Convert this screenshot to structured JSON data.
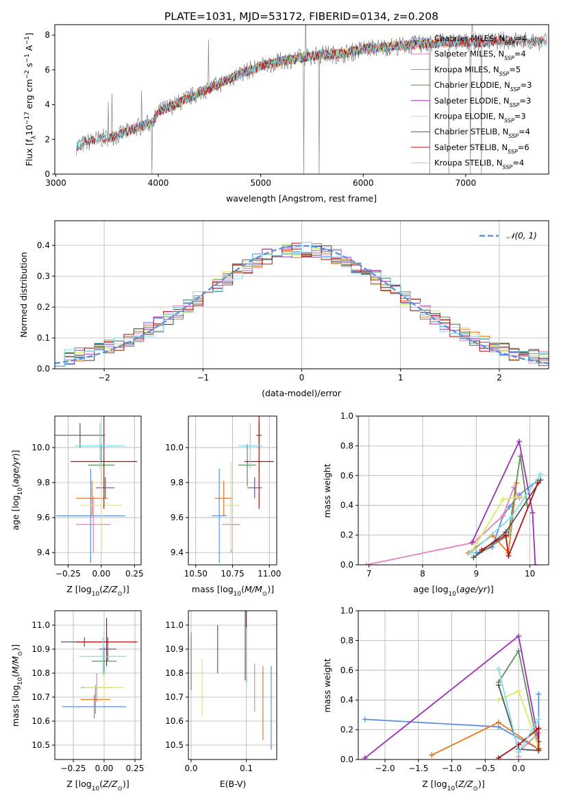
{
  "figure": {
    "title": "PLATE=1031, MJD=53172, FIBERID=0134, z=0.208"
  },
  "colors": {
    "Chabrier MILES": "#5b8fe0",
    "Salpeter MILES": "#e67fb9",
    "Kroupa MILES": "#e8761e",
    "Chabrier ELODIE": "#5e8c5e",
    "Salpeter ELODIE": "#9b2fb3",
    "Kroupa ELODIE": "#d3ec63",
    "Chabrier STELIB": "#555555",
    "Salpeter STELIB": "#b30d0d",
    "Kroupa STELIB": "#7fdde8",
    "data": "#808080",
    "normal": "#5b8fe0"
  },
  "chart_data": [
    {
      "type": "line",
      "id": "spectrum",
      "xlabel": "wavelength [Angstrom, rest frame]",
      "ylabel": "Flux [f_λ10^-17 erg cm^-2 s^-1 A^-1]",
      "xlim": [
        2990,
        7810
      ],
      "ylim": [
        0,
        8.6
      ],
      "xticks": [
        3000,
        4000,
        5000,
        6000,
        7000
      ],
      "yticks": [
        0,
        2,
        4,
        6,
        8
      ],
      "grid": false,
      "legend_position": "top-right",
      "legend": [
        {
          "label": "Chabrier MILES",
          "nssp": "4"
        },
        {
          "label": "Salpeter MILES",
          "nssp": "4"
        },
        {
          "label": "Kroupa MILES",
          "nssp": "5"
        },
        {
          "label": "Chabrier ELODIE",
          "nssp": "3"
        },
        {
          "label": "Salpeter ELODIE",
          "nssp": "3"
        },
        {
          "label": "Kroupa ELODIE",
          "nssp": "3"
        },
        {
          "label": "Chabrier STELIB",
          "nssp": "4"
        },
        {
          "label": "Salpeter STELIB",
          "nssp": "6"
        },
        {
          "label": "Kroupa STELIB",
          "nssp": "4"
        }
      ],
      "continuum_x": [
        3200,
        3400,
        3600,
        3800,
        3950,
        4000,
        4200,
        4400,
        4600,
        4800,
        5000,
        5200,
        5400,
        5600,
        5800,
        6000,
        6200,
        6400,
        6600,
        6800,
        7000,
        7200,
        7400,
        7790
      ],
      "continuum_y": [
        1.6,
        2.0,
        2.2,
        2.7,
        3.0,
        3.6,
        4.1,
        4.7,
        5.2,
        5.8,
        6.2,
        6.5,
        6.7,
        6.9,
        6.9,
        7.2,
        7.3,
        7.4,
        7.5,
        7.6,
        7.6,
        7.6,
        7.7,
        7.6
      ]
    },
    {
      "type": "bar",
      "id": "residuals",
      "xlabel": "(data-model)/error",
      "ylabel": "Normed distribution",
      "xlim": [
        -2.5,
        2.5
      ],
      "ylim": [
        0,
        0.48
      ],
      "xticks": [
        -2,
        -1,
        0,
        1,
        2
      ],
      "yticks": [
        0.0,
        0.1,
        0.2,
        0.3,
        0.4
      ],
      "grid": true,
      "bin_width": 0.1,
      "legend": "N(0,1)",
      "legend_position": "top-right"
    },
    {
      "type": "scatter",
      "id": "age-vs-Z",
      "xlabel": "Z [log10(Z/Z⊙)]",
      "ylabel": "age [log10(age/yr)]",
      "xlim": [
        -0.35,
        0.3
      ],
      "ylim": [
        9.33,
        10.18
      ],
      "xticks": [
        -0.25,
        0.0,
        0.25
      ],
      "yticks": [
        9.4,
        9.6,
        9.8,
        10.0
      ],
      "grid": true
    },
    {
      "type": "scatter",
      "id": "age-vs-mass",
      "xlabel": "mass [log10(M/M⊙)]",
      "ylabel": "",
      "xlim": [
        10.45,
        11.05
      ],
      "ylim": [
        9.33,
        10.18
      ],
      "xticks": [
        10.5,
        10.75,
        11.0
      ],
      "yticks": [
        9.4,
        9.6,
        9.8,
        10.0
      ],
      "grid": true
    },
    {
      "type": "line",
      "id": "mass-weight-vs-age",
      "xlabel": "age [log10(age/yr)]",
      "ylabel": "mass weight",
      "xlim": [
        6.8,
        10.35
      ],
      "ylim": [
        0,
        1.0
      ],
      "xticks": [
        7,
        8,
        9,
        10
      ],
      "yticks": [
        0.0,
        0.2,
        0.4,
        0.6,
        0.8,
        1.0
      ],
      "grid": true
    },
    {
      "type": "scatter",
      "id": "mass-vs-Z",
      "xlabel": "Z [log10(Z/Z⊙)]",
      "ylabel": "mass [log10(M/M⊙)]",
      "xlim": [
        -0.4,
        0.3
      ],
      "ylim": [
        10.44,
        11.06
      ],
      "xticks": [
        -0.25,
        0.0,
        0.25
      ],
      "yticks": [
        10.5,
        10.6,
        10.7,
        10.8,
        10.9,
        11.0
      ],
      "grid": true
    },
    {
      "type": "scatter",
      "id": "mass-vs-EBV",
      "xlabel": "E(B-V)",
      "ylabel": "",
      "xlim": [
        -0.005,
        0.155
      ],
      "ylim": [
        10.44,
        11.06
      ],
      "xticks": [
        0.0,
        0.1
      ],
      "yticks": [
        10.5,
        10.6,
        10.7,
        10.8,
        10.9,
        11.0
      ],
      "grid": true
    },
    {
      "type": "line",
      "id": "mass-weight-vs-Z",
      "xlabel": "Z [log10(Z/Z⊙)]",
      "ylabel": "mass weight",
      "xlim": [
        -2.4,
        0.45
      ],
      "ylim": [
        0,
        1.0
      ],
      "xticks": [
        -2.0,
        -1.5,
        -1.0,
        -0.5,
        0.0
      ],
      "yticks": [
        0.0,
        0.2,
        0.4,
        0.6,
        0.8,
        1.0
      ],
      "grid": true
    }
  ],
  "models": [
    {
      "name": "Chabrier MILES",
      "age": [
        9.61,
        0.27
      ],
      "Z": [
        -0.08,
        0.26
      ],
      "mass": [
        10.66,
        0.05
      ],
      "mass_err": [
        0.2,
        0.16
      ],
      "ebv": 0.145,
      "ebv_err": [
        0.18,
        0.17
      ],
      "mw_age": [
        [
          9.0,
          0.08
        ],
        [
          9.3,
          0.12
        ],
        [
          9.5,
          0.33
        ],
        [
          9.62,
          0.39
        ],
        [
          9.8,
          0.47
        ],
        [
          10.15,
          0.57
        ]
      ],
      "mw_Z": [
        [
          -2.3,
          0.27
        ],
        [
          -0.3,
          0.22
        ],
        [
          0.3,
          0.07
        ],
        [
          0.3,
          0.44
        ]
      ]
    },
    {
      "name": "Salpeter MILES",
      "age": [
        9.56,
        0.16
      ],
      "Z": [
        -0.06,
        0.13
      ],
      "mass": [
        10.74,
        0.06
      ],
      "mass_err": [
        0.1,
        0.1
      ],
      "ebv": 0.115,
      "ebv_err": [
        0.1,
        0.1
      ],
      "mw_age": [
        [
          6.95,
          0.0
        ],
        [
          8.95,
          0.15
        ],
        [
          9.5,
          0.33
        ],
        [
          9.7,
          0.52
        ],
        [
          9.8,
          0.45
        ]
      ],
      "mw_Z": [
        [
          0.0,
          0.02
        ],
        [
          0.0,
          0.05
        ],
        [
          0.3,
          0.18
        ]
      ]
    },
    {
      "name": "Kroupa MILES",
      "age": [
        9.71,
        0.1
      ],
      "Z": [
        -0.07,
        0.12
      ],
      "mass": [
        10.69,
        0.06
      ],
      "mass_err": [
        0.17,
        0.1
      ],
      "ebv": 0.13,
      "ebv_err": [
        0.17,
        0.14
      ],
      "mw_age": [
        [
          8.85,
          0.08
        ],
        [
          9.3,
          0.2
        ],
        [
          9.6,
          0.08
        ],
        [
          9.75,
          0.55
        ]
      ],
      "mw_Z": [
        [
          -1.3,
          0.03
        ],
        [
          -0.3,
          0.25
        ],
        [
          0.3,
          0.07
        ]
      ]
    },
    {
      "name": "Chabrier ELODIE",
      "age": [
        9.9,
        0.12
      ],
      "Z": [
        0.0,
        0.1
      ],
      "mass": [
        10.85,
        0.06
      ],
      "mass_err": [
        0.11,
        0.1
      ],
      "ebv": 0.0,
      "ebv_err": [
        0.12,
        0.12
      ],
      "mw_age": [
        [
          8.95,
          0.05
        ],
        [
          9.6,
          0.2
        ],
        [
          9.82,
          0.73
        ],
        [
          9.95,
          0.4
        ]
      ],
      "mw_Z": [
        [
          -0.3,
          0.52
        ],
        [
          0.0,
          0.73
        ],
        [
          0.3,
          0.06
        ]
      ]
    },
    {
      "name": "Salpeter ELODIE",
      "age": [
        9.77,
        0.06
      ],
      "Z": [
        0.03,
        0.07
      ],
      "mass": [
        10.9,
        0.05
      ],
      "mass_err": [
        0.03,
        0.03
      ],
      "ebv": 0.048,
      "ebv_err": [
        0.1,
        0.1
      ],
      "mw_age": [
        [
          8.92,
          0.15
        ],
        [
          9.8,
          0.83
        ],
        [
          10.05,
          0.35
        ],
        [
          10.1,
          0.0
        ]
      ],
      "mw_Z": [
        [
          -2.3,
          0.01
        ],
        [
          0.0,
          0.83
        ],
        [
          0.3,
          0.12
        ]
      ]
    },
    {
      "name": "Kroupa ELODIE",
      "age": [
        9.67,
        0.25
      ],
      "Z": [
        0.0,
        0.16
      ],
      "mass": [
        10.74,
        0.06
      ],
      "mass_err": [
        0.11,
        0.12
      ],
      "ebv": 0.02,
      "ebv_err": [
        0.12,
        0.12
      ],
      "mw_age": [
        [
          8.9,
          0.08
        ],
        [
          9.5,
          0.44
        ],
        [
          9.7,
          0.45
        ],
        [
          9.85,
          0.46
        ]
      ],
      "mw_Z": [
        [
          -0.3,
          0.4
        ],
        [
          0.0,
          0.46
        ],
        [
          0.3,
          0.08
        ]
      ]
    },
    {
      "name": "Chabrier STELIB",
      "age": [
        10.07,
        0.07
      ],
      "Z": [
        -0.16,
        0.19
      ],
      "mass": [
        10.93,
        0.02
      ],
      "mass_err": [
        0.15,
        0.13
      ],
      "ebv": 0.098,
      "ebv_err": [
        0.16,
        0.16
      ],
      "mw_age": [
        [
          8.95,
          0.05
        ],
        [
          9.55,
          0.22
        ],
        [
          10.2,
          0.57
        ]
      ],
      "mw_Z": [
        [
          -0.3,
          0.5
        ],
        [
          0.0,
          0.07
        ],
        [
          0.3,
          0.06
        ]
      ]
    },
    {
      "name": "Salpeter STELIB",
      "age": [
        9.92,
        0.27
      ],
      "Z": [
        0.02,
        0.25
      ],
      "mass": [
        10.93,
        0.1
      ],
      "mass_err": [
        0.12,
        0.12
      ],
      "ebv": 0.1,
      "ebv_err": [
        0.17,
        0.16
      ],
      "mw_age": [
        [
          9.1,
          0.1
        ],
        [
          9.55,
          0.2
        ],
        [
          9.6,
          0.06
        ],
        [
          10.15,
          0.55
        ]
      ],
      "mw_Z": [
        [
          -0.3,
          0.01
        ],
        [
          0.0,
          0.1
        ],
        [
          0.3,
          0.21
        ],
        [
          0.3,
          0.07
        ]
      ]
    },
    {
      "name": "Kroupa STELIB",
      "age": [
        10.01,
        0.13
      ],
      "Z": [
        -0.01,
        0.19
      ],
      "mass": [
        10.87,
        0.08
      ],
      "mass_err": [
        0.08,
        0.1
      ],
      "ebv": 0.1,
      "ebv_err": [
        0.13,
        0.12
      ],
      "mw_age": [
        [
          8.9,
          0.08
        ],
        [
          9.65,
          0.32
        ],
        [
          10.2,
          0.61
        ]
      ],
      "mw_Z": [
        [
          -0.3,
          0.61
        ],
        [
          0.0,
          0.05
        ],
        [
          0.3,
          0.27
        ]
      ]
    }
  ]
}
